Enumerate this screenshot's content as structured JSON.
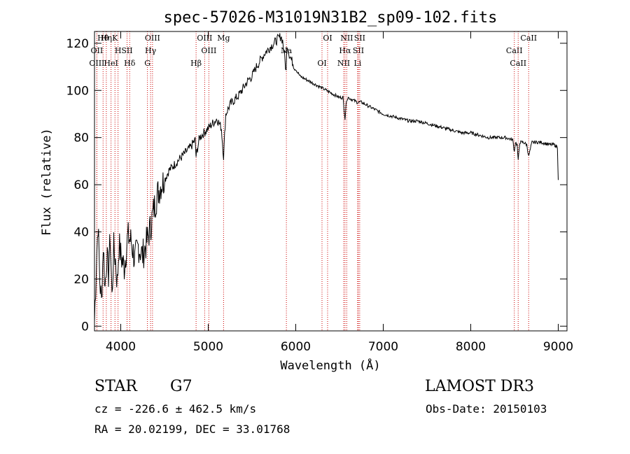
{
  "chart_data": {
    "type": "line",
    "title": "spec-57026-M31019N31B2_sp09-102.fits",
    "xlabel": "Wavelength (Å)",
    "ylabel": "Flux (relative)",
    "xlim": [
      3700,
      9100
    ],
    "ylim": [
      -2,
      125
    ],
    "xticks": [
      4000,
      5000,
      6000,
      7000,
      8000,
      9000
    ],
    "yticks": [
      0,
      20,
      40,
      60,
      80,
      100,
      120
    ],
    "series": [
      {
        "name": "spectrum",
        "x": [
          3700,
          3720,
          3740,
          3760,
          3780,
          3800,
          3820,
          3840,
          3860,
          3880,
          3900,
          3920,
          3940,
          3960,
          3980,
          4000,
          4040,
          4080,
          4120,
          4160,
          4200,
          4250,
          4300,
          4340,
          4380,
          4420,
          4460,
          4500,
          4550,
          4600,
          4650,
          4700,
          4750,
          4800,
          4850,
          4861,
          4900,
          4950,
          5000,
          5050,
          5100,
          5150,
          5175,
          5200,
          5250,
          5300,
          5350,
          5400,
          5450,
          5500,
          5550,
          5600,
          5650,
          5700,
          5750,
          5800,
          5830,
          5850,
          5870,
          5890,
          5900,
          5920,
          5950,
          6000,
          6050,
          6100,
          6150,
          6200,
          6250,
          6300,
          6350,
          6400,
          6450,
          6500,
          6540,
          6563,
          6580,
          6600,
          6650,
          6700,
          6750,
          6800,
          6850,
          6900,
          6950,
          7000,
          7100,
          7200,
          7300,
          7400,
          7500,
          7600,
          7700,
          7800,
          7900,
          8000,
          8100,
          8200,
          8300,
          8400,
          8480,
          8498,
          8510,
          8530,
          8542,
          8560,
          8600,
          8640,
          8662,
          8700,
          8800,
          8900,
          8950,
          8990,
          9000
        ],
        "values": [
          2,
          25,
          44,
          20,
          10,
          35,
          16,
          30,
          22,
          38,
          12,
          33,
          28,
          18,
          35,
          30,
          25,
          38,
          36,
          28,
          34,
          30,
          36,
          42,
          50,
          56,
          60,
          62,
          66,
          68,
          70,
          72,
          74,
          76,
          79,
          72,
          80,
          82,
          84,
          86,
          88,
          84,
          72,
          90,
          94,
          96,
          98,
          101,
          104,
          106,
          110,
          113,
          116,
          118,
          120,
          122,
          123,
          121,
          115,
          108,
          120,
          116,
          113,
          109,
          106,
          105,
          104,
          103,
          102,
          101,
          100,
          99,
          98,
          97,
          97,
          88,
          96,
          97,
          96,
          95,
          95,
          94,
          93,
          92,
          91,
          90,
          89,
          88,
          87,
          87,
          86,
          85,
          84,
          83,
          82,
          82,
          81,
          80,
          80,
          80,
          79,
          74,
          78,
          77,
          70,
          78,
          78,
          77,
          72,
          78,
          78,
          77,
          77,
          76,
          62
        ]
      }
    ],
    "lines": [
      {
        "label": "Hθ",
        "x": 3798
      },
      {
        "label": "OII",
        "x": 3727
      },
      {
        "label": "OIII",
        "x": 3727
      },
      {
        "label": "K",
        "x": 3934
      },
      {
        "label": "H",
        "x": 3969
      },
      {
        "label": "HeI",
        "x": 3889
      },
      {
        "label": "Hη",
        "x": 3835
      },
      {
        "label": "SII",
        "x": 4072
      },
      {
        "label": "Hδ",
        "x": 4102
      },
      {
        "label": "OIII",
        "x": 4363
      },
      {
        "label": "Hγ",
        "x": 4341
      },
      {
        "label": "G",
        "x": 4305
      },
      {
        "label": "OIII",
        "x": 4959
      },
      {
        "label": "OIII",
        "x": 5007
      },
      {
        "label": "Hβ",
        "x": 4861
      },
      {
        "label": "Mg",
        "x": 5175
      },
      {
        "label": "Na",
        "x": 5893
      },
      {
        "label": "OI",
        "x": 6300
      },
      {
        "label": "OI",
        "x": 6364
      },
      {
        "label": "Hα",
        "x": 6563
      },
      {
        "label": "NII",
        "x": 6548
      },
      {
        "label": "NII",
        "x": 6583
      },
      {
        "label": "SII",
        "x": 6716
      },
      {
        "label": "Li",
        "x": 6707
      },
      {
        "label": "SII",
        "x": 6731
      },
      {
        "label": "CaII",
        "x": 8498
      },
      {
        "label": "CaII",
        "x": 8542
      },
      {
        "label": "CaII",
        "x": 8662
      }
    ],
    "line_color": "#cc0000",
    "curve_color": "#000000"
  },
  "info": {
    "object_type": "STAR",
    "subclass": "G7",
    "survey": "LAMOST DR3",
    "redshift": "cz = -226.6 ± 462.5 km/s",
    "obs_date": "Obs-Date: 20150103",
    "coords": "RA =  20.02199, DEC =  33.01768"
  }
}
